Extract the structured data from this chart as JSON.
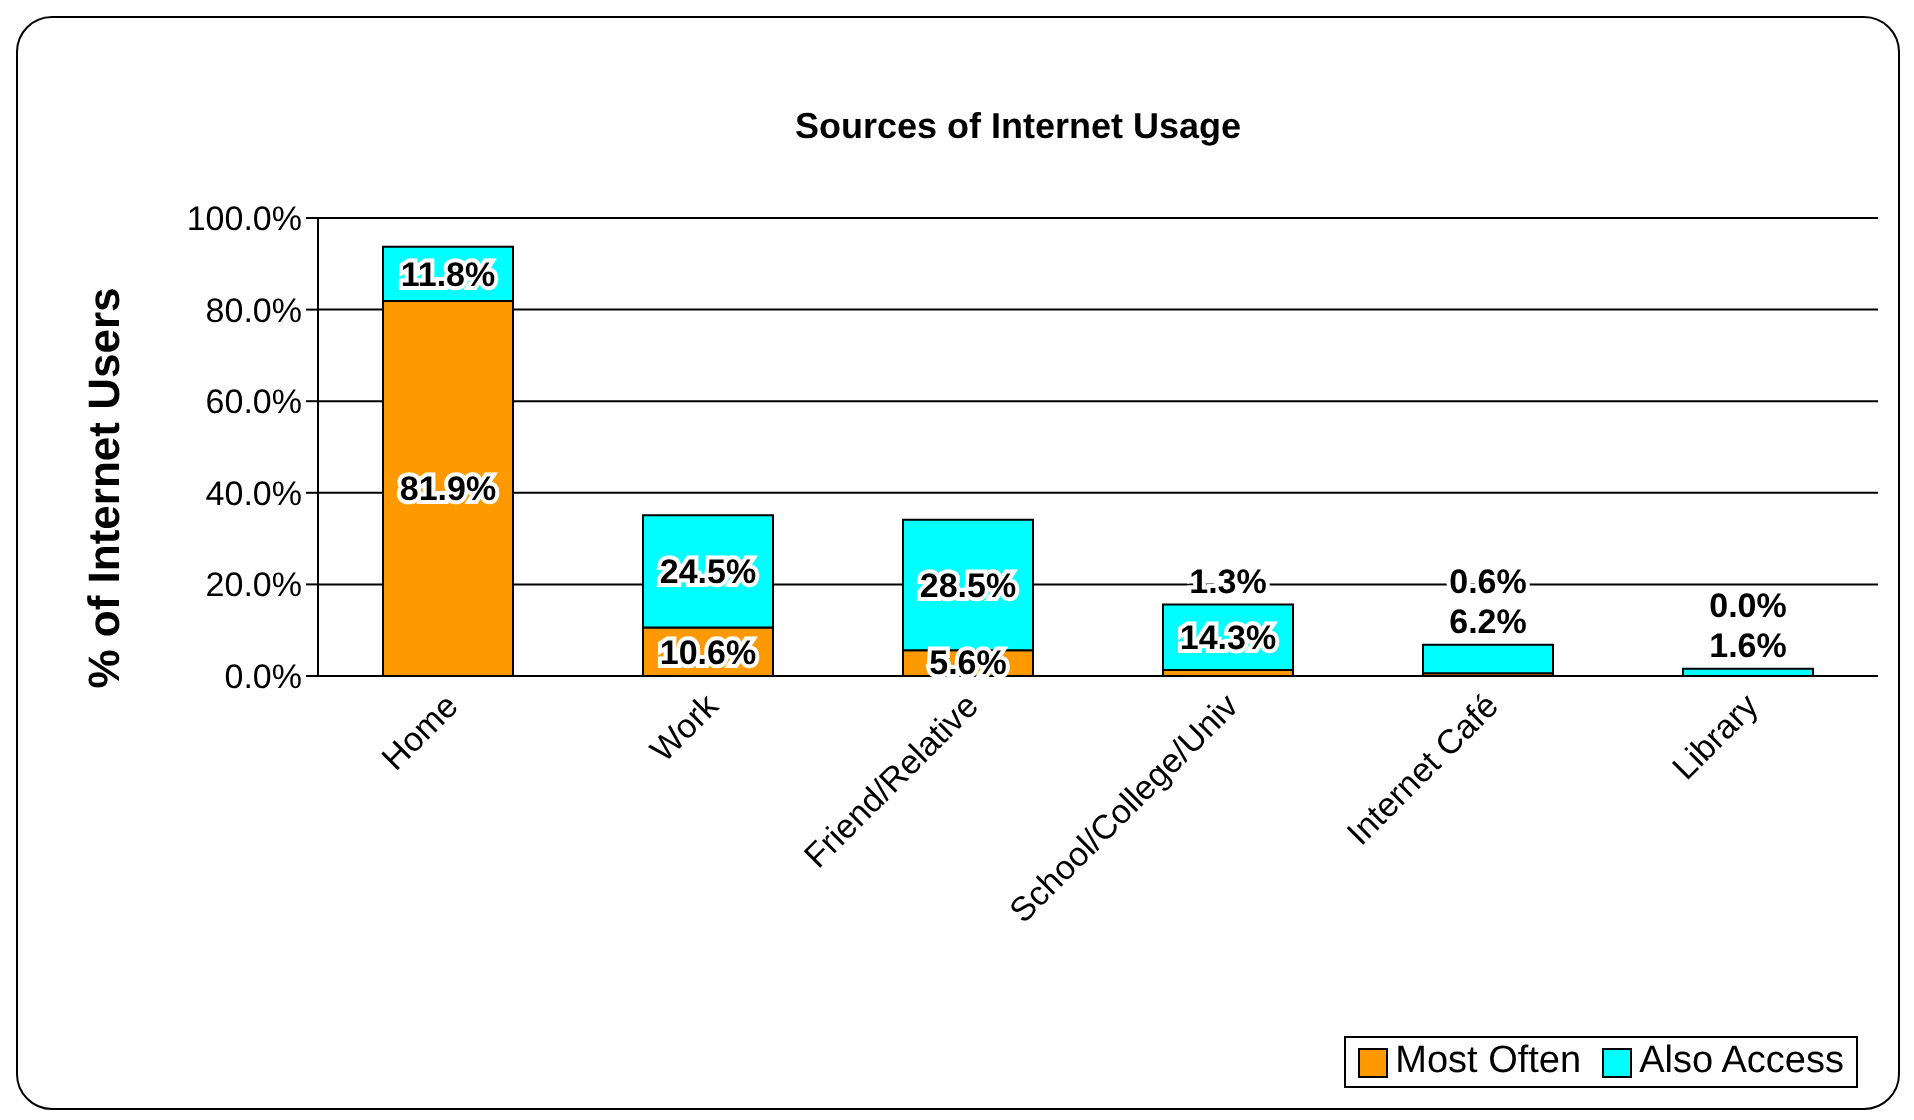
{
  "chart_data": {
    "type": "bar",
    "title": "Sources of Internet Usage",
    "ylabel": "% of Internet Users",
    "categories": [
      "Home",
      "Work",
      "Friend/Relative",
      "School/College/Univ",
      "Internet Café",
      "Library"
    ],
    "stacked": true,
    "series": [
      {
        "name": "Most Often",
        "color": "#ff9900",
        "values": [
          81.9,
          10.6,
          5.6,
          1.3,
          0.6,
          0.0
        ],
        "value_labels": [
          "81.9%",
          "10.6%",
          "5.6%",
          "1.3%",
          "0.6%",
          "0.0%"
        ]
      },
      {
        "name": "Also Access",
        "color": "#00ffff",
        "values": [
          11.8,
          24.5,
          28.5,
          14.3,
          6.2,
          1.6
        ],
        "value_labels": [
          "11.8%",
          "24.5%",
          "28.5%",
          "14.3%",
          "6.2%",
          "1.6%"
        ]
      }
    ],
    "ylim": [
      0,
      100
    ],
    "yticks": [
      {
        "value": 0,
        "label": "0.0%"
      },
      {
        "value": 20,
        "label": "20.0%"
      },
      {
        "value": 40,
        "label": "40.0%"
      },
      {
        "value": 60,
        "label": "60.0%"
      },
      {
        "value": 80,
        "label": "80.0%"
      },
      {
        "value": 100,
        "label": "100.0%"
      }
    ],
    "grid": "y",
    "legend": "bottom right"
  }
}
